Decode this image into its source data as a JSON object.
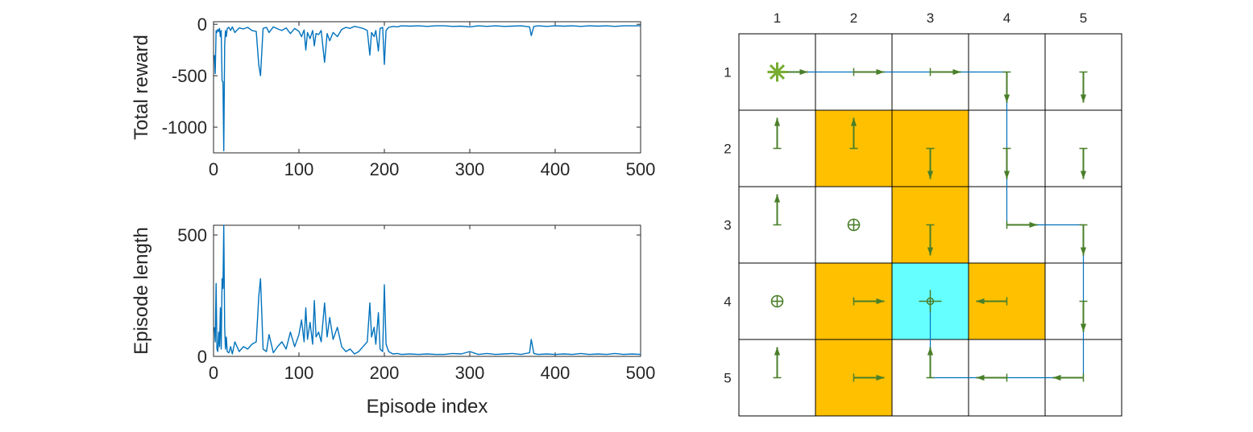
{
  "colors": {
    "line": "#0072BD",
    "arrow": "#4A7F2A",
    "start_marker": "#77AC30",
    "forbidden": "#FFC000",
    "target": "#66FFFF",
    "axis": "#262626",
    "grid_line": "#000000"
  },
  "chart_data": [
    {
      "type": "line",
      "title": "",
      "xlabel": "",
      "ylabel": "Total reward",
      "xlim": [
        0,
        500
      ],
      "ylim": [
        -1250,
        25
      ],
      "xticks": [
        0,
        100,
        200,
        300,
        400,
        500
      ],
      "yticks": [
        -1000,
        -500,
        0
      ],
      "ytick_labels": [
        "-1000",
        "-500",
        "0"
      ],
      "series": [
        {
          "x": [
            1,
            2,
            3,
            4,
            5,
            6,
            7,
            8,
            9,
            10,
            11,
            12,
            13,
            14,
            15,
            16,
            18,
            20,
            22,
            25,
            30,
            35,
            40,
            45,
            50,
            53,
            55,
            58,
            62,
            65,
            70,
            75,
            80,
            85,
            90,
            95,
            100,
            103,
            106,
            108,
            110,
            113,
            116,
            118,
            120,
            123,
            126,
            130,
            133,
            136,
            140,
            145,
            150,
            155,
            160,
            165,
            170,
            175,
            180,
            183,
            185,
            188,
            190,
            193,
            195,
            198,
            200,
            202,
            205,
            210,
            215,
            220,
            230,
            240,
            250,
            260,
            270,
            280,
            290,
            300,
            310,
            320,
            330,
            340,
            350,
            360,
            370,
            372,
            375,
            380,
            390,
            400,
            410,
            420,
            430,
            440,
            450,
            460,
            470,
            480,
            490,
            500
          ],
          "y": [
            -300,
            -480,
            -60,
            -80,
            -50,
            -70,
            -40,
            -120,
            -60,
            -550,
            -560,
            -1230,
            -200,
            -60,
            -120,
            -40,
            -30,
            -60,
            -25,
            -80,
            -35,
            -45,
            -30,
            -60,
            -70,
            -400,
            -500,
            -40,
            -30,
            -80,
            -25,
            -45,
            -60,
            -35,
            -90,
            -40,
            -70,
            -120,
            -55,
            -250,
            -80,
            -140,
            -60,
            -210,
            -90,
            -100,
            -60,
            -370,
            -90,
            -160,
            -80,
            -120,
            -50,
            -30,
            -40,
            -20,
            -30,
            -40,
            -60,
            -300,
            -80,
            -120,
            -60,
            -260,
            -40,
            -30,
            -390,
            -60,
            -30,
            -20,
            -25,
            -15,
            -18,
            -15,
            -20,
            -15,
            -15,
            -20,
            -18,
            -25,
            -15,
            -20,
            -15,
            -20,
            -18,
            -15,
            -25,
            -110,
            -20,
            -15,
            -20,
            -15,
            -18,
            -15,
            -20,
            -15,
            -18,
            -15,
            -20,
            -15,
            -15,
            -15
          ]
        }
      ]
    },
    {
      "type": "line",
      "title": "",
      "xlabel": "Episode index",
      "ylabel": "Episode length",
      "xlim": [
        0,
        500
      ],
      "ylim": [
        0,
        540
      ],
      "xticks": [
        0,
        100,
        200,
        300,
        400,
        500
      ],
      "yticks": [
        0,
        500
      ],
      "ytick_labels": [
        "0",
        "500"
      ],
      "series": [
        {
          "x": [
            1,
            2,
            3,
            4,
            5,
            6,
            7,
            8,
            9,
            10,
            11,
            12,
            13,
            14,
            15,
            16,
            18,
            20,
            22,
            25,
            30,
            35,
            40,
            45,
            50,
            53,
            55,
            58,
            62,
            65,
            70,
            75,
            80,
            85,
            90,
            95,
            100,
            103,
            106,
            108,
            110,
            113,
            116,
            118,
            120,
            123,
            126,
            130,
            133,
            136,
            140,
            145,
            150,
            155,
            160,
            165,
            170,
            175,
            180,
            183,
            185,
            188,
            190,
            193,
            195,
            198,
            200,
            202,
            205,
            210,
            215,
            220,
            230,
            240,
            250,
            260,
            270,
            280,
            290,
            300,
            310,
            320,
            330,
            340,
            350,
            360,
            370,
            372,
            375,
            380,
            390,
            400,
            410,
            420,
            430,
            440,
            450,
            460,
            470,
            480,
            490,
            500
          ],
          "y": [
            120,
            60,
            300,
            30,
            20,
            100,
            40,
            200,
            30,
            320,
            280,
            540,
            120,
            30,
            80,
            20,
            15,
            40,
            10,
            60,
            20,
            40,
            30,
            50,
            60,
            250,
            320,
            30,
            20,
            90,
            15,
            40,
            60,
            30,
            100,
            40,
            90,
            150,
            60,
            200,
            70,
            140,
            50,
            230,
            80,
            100,
            60,
            220,
            80,
            160,
            70,
            120,
            40,
            20,
            30,
            10,
            20,
            40,
            60,
            220,
            80,
            120,
            50,
            180,
            30,
            20,
            295,
            50,
            20,
            10,
            12,
            8,
            10,
            8,
            10,
            8,
            8,
            12,
            10,
            20,
            8,
            12,
            8,
            10,
            12,
            8,
            15,
            70,
            12,
            8,
            10,
            8,
            10,
            8,
            12,
            8,
            10,
            8,
            12,
            8,
            10,
            8
          ]
        }
      ]
    },
    {
      "type": "grid",
      "title": "",
      "xlabel": "",
      "ylabel": "",
      "column_labels": [
        "1",
        "2",
        "3",
        "4",
        "5"
      ],
      "row_labels": [
        "1",
        "2",
        "3",
        "4",
        "5"
      ],
      "cells": [
        {
          "row": 2,
          "col": 2,
          "kind": "forbidden"
        },
        {
          "row": 2,
          "col": 3,
          "kind": "forbidden"
        },
        {
          "row": 3,
          "col": 3,
          "kind": "forbidden"
        },
        {
          "row": 4,
          "col": 2,
          "kind": "forbidden"
        },
        {
          "row": 4,
          "col": 4,
          "kind": "forbidden"
        },
        {
          "row": 5,
          "col": 2,
          "kind": "forbidden"
        },
        {
          "row": 4,
          "col": 3,
          "kind": "target"
        }
      ],
      "start": {
        "row": 1,
        "col": 1
      },
      "policy": [
        {
          "row": 1,
          "col": 1,
          "action": "right"
        },
        {
          "row": 1,
          "col": 2,
          "action": "right"
        },
        {
          "row": 1,
          "col": 3,
          "action": "right"
        },
        {
          "row": 1,
          "col": 4,
          "action": "down"
        },
        {
          "row": 1,
          "col": 5,
          "action": "down"
        },
        {
          "row": 2,
          "col": 1,
          "action": "up"
        },
        {
          "row": 2,
          "col": 2,
          "action": "up"
        },
        {
          "row": 2,
          "col": 3,
          "action": "down"
        },
        {
          "row": 2,
          "col": 4,
          "action": "down"
        },
        {
          "row": 2,
          "col": 5,
          "action": "down"
        },
        {
          "row": 3,
          "col": 1,
          "action": "up"
        },
        {
          "row": 3,
          "col": 2,
          "action": "stay"
        },
        {
          "row": 3,
          "col": 3,
          "action": "down"
        },
        {
          "row": 3,
          "col": 4,
          "action": "right"
        },
        {
          "row": 3,
          "col": 5,
          "action": "down"
        },
        {
          "row": 4,
          "col": 1,
          "action": "stay"
        },
        {
          "row": 4,
          "col": 2,
          "action": "right"
        },
        {
          "row": 4,
          "col": 3,
          "action": "stay"
        },
        {
          "row": 4,
          "col": 4,
          "action": "left"
        },
        {
          "row": 4,
          "col": 5,
          "action": "down"
        },
        {
          "row": 5,
          "col": 1,
          "action": "up"
        },
        {
          "row": 5,
          "col": 2,
          "action": "right"
        },
        {
          "row": 5,
          "col": 3,
          "action": "up"
        },
        {
          "row": 5,
          "col": 4,
          "action": "left"
        },
        {
          "row": 5,
          "col": 5,
          "action": "left"
        }
      ],
      "trajectory": [
        {
          "row": 1,
          "col": 1
        },
        {
          "row": 1,
          "col": 2
        },
        {
          "row": 1,
          "col": 3
        },
        {
          "row": 1,
          "col": 4
        },
        {
          "row": 2,
          "col": 4
        },
        {
          "row": 3,
          "col": 4
        },
        {
          "row": 3,
          "col": 5
        },
        {
          "row": 4,
          "col": 5
        },
        {
          "row": 5,
          "col": 5
        },
        {
          "row": 5,
          "col": 4
        },
        {
          "row": 5,
          "col": 3
        },
        {
          "row": 4,
          "col": 3
        }
      ]
    }
  ]
}
